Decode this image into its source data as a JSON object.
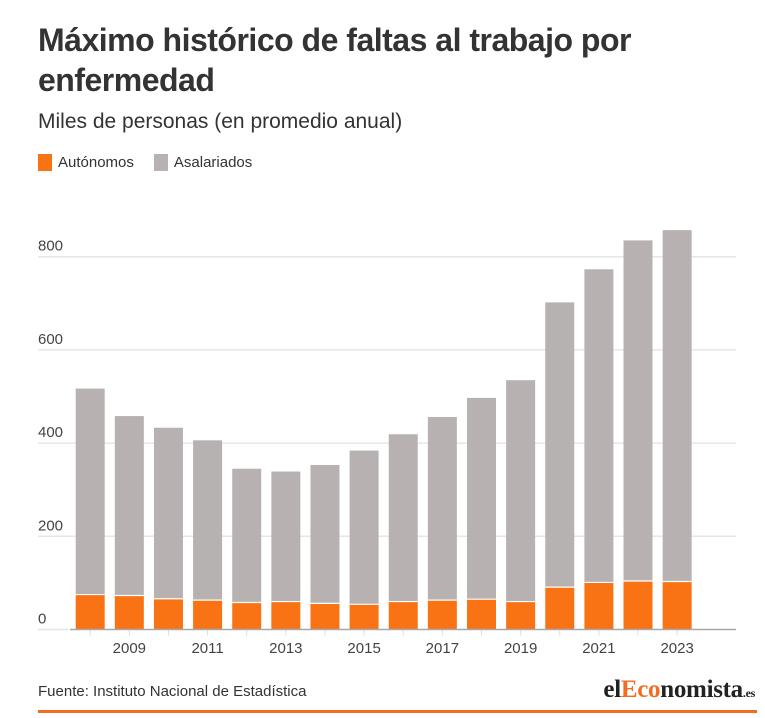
{
  "header": {
    "title": "Máximo histórico de faltas al trabajo por enfermedad",
    "subtitle": "Miles de personas (en promedio anual)"
  },
  "legend": [
    {
      "label": "Autónomos",
      "color": "#f97315"
    },
    {
      "label": "Asalariados",
      "color": "#b7b2b1"
    }
  ],
  "footer": {
    "source": "Fuente: Instituto Nacional de Estadística",
    "logo": {
      "part1": "el",
      "part2": "Eco",
      "part3": "nomista",
      "part4": ".es"
    },
    "accent_color": "#f26d21"
  },
  "chart_data": {
    "type": "bar",
    "stacked": true,
    "title": "Máximo histórico de faltas al trabajo por enfermedad",
    "subtitle": "Miles de personas (en promedio anual)",
    "xlabel": "",
    "ylabel": "",
    "categories": [
      "2008",
      "2009",
      "2010",
      "2011",
      "2012",
      "2013",
      "2014",
      "2015",
      "2016",
      "2017",
      "2018",
      "2019",
      "2020",
      "2021",
      "2022",
      "2023"
    ],
    "x_tick_labels": [
      "2009",
      "2011",
      "2013",
      "2015",
      "2017",
      "2019",
      "2021",
      "2023"
    ],
    "y_ticks": [
      0,
      200,
      400,
      600,
      800
    ],
    "ylim": [
      0,
      870
    ],
    "grid": true,
    "legend_position": "top-left",
    "series": [
      {
        "name": "Autónomos",
        "color": "#f97315",
        "values": [
          75,
          73,
          66,
          63,
          58,
          60,
          56,
          54,
          60,
          63,
          65,
          60,
          91,
          101,
          104,
          103
        ]
      },
      {
        "name": "Asalariados",
        "color": "#b7b2b1",
        "values": [
          442,
          385,
          367,
          343,
          287,
          279,
          297,
          330,
          359,
          393,
          432,
          475,
          611,
          672,
          731,
          754
        ]
      }
    ],
    "source": "Fuente: Instituto Nacional de Estadística"
  }
}
